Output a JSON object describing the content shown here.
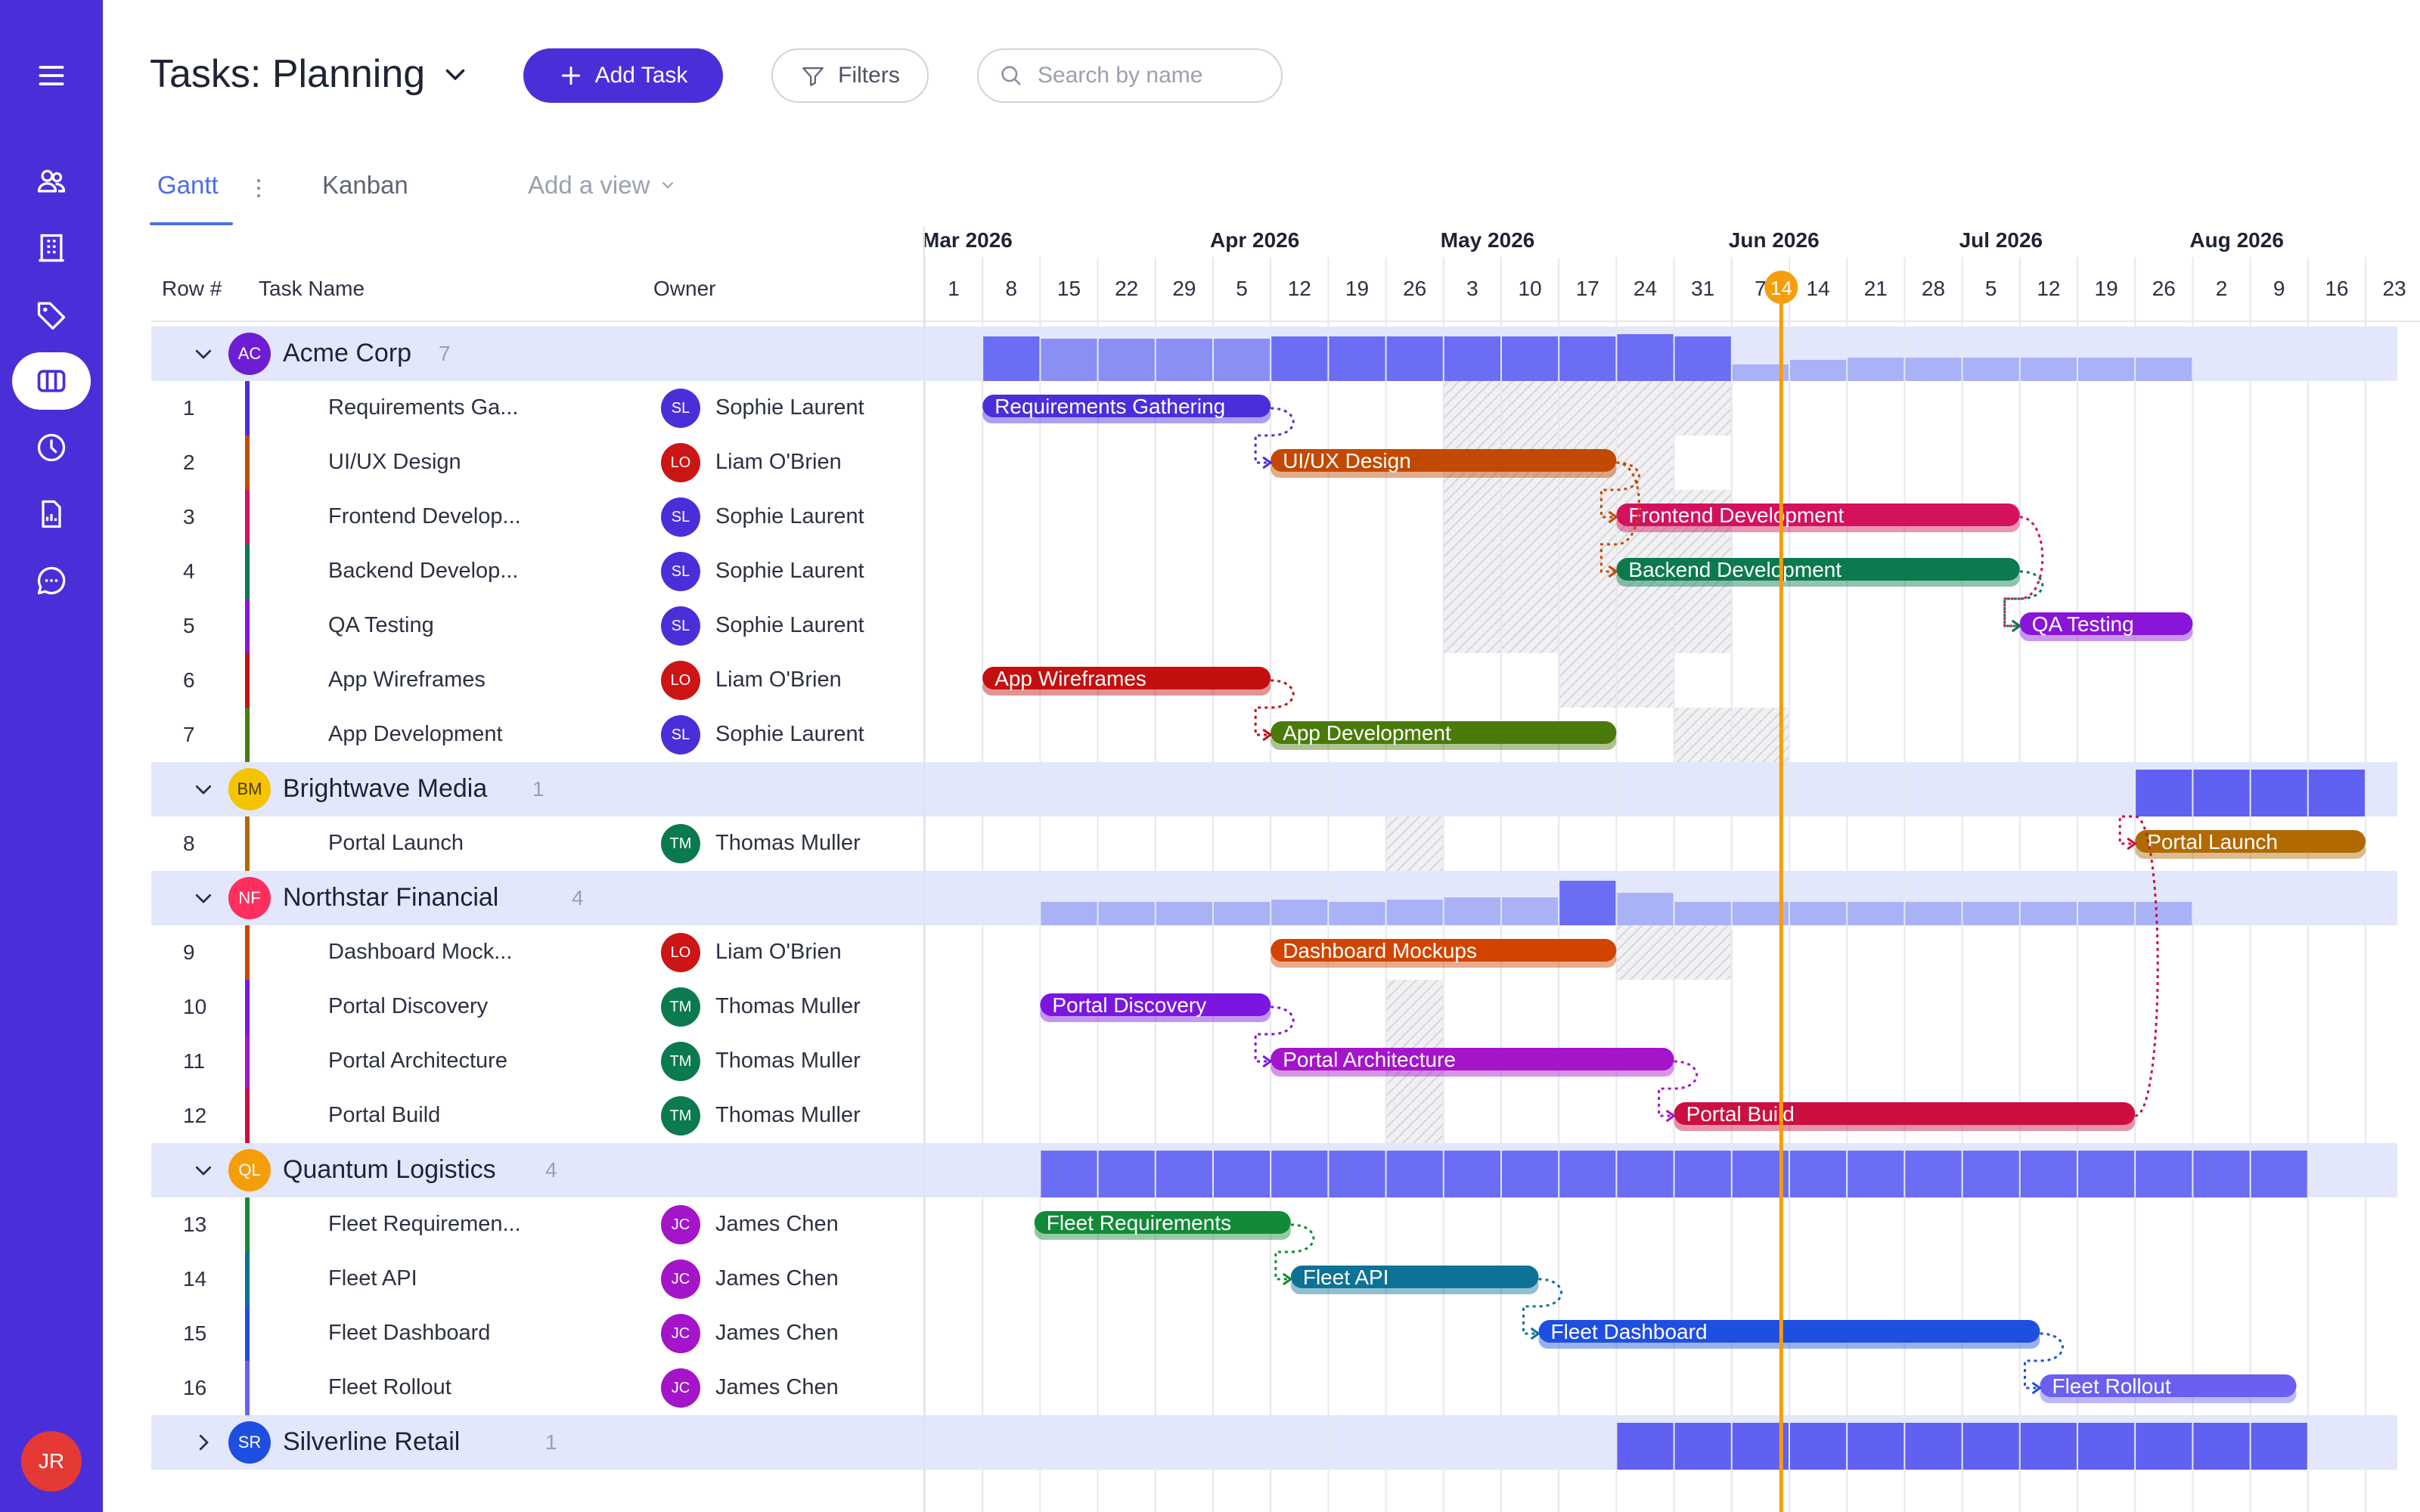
{
  "header": {
    "title": "Tasks: Planning",
    "add_task": "Add Task",
    "filters": "Filters",
    "search_placeholder": "Search by name"
  },
  "tabs": [
    {
      "label": "Gantt",
      "active": true
    },
    {
      "label": "Kanban",
      "active": false
    },
    {
      "label": "Add a view",
      "active": false
    }
  ],
  "table_headers": {
    "row": "Row #",
    "task": "Task Name",
    "owner": "Owner"
  },
  "user_initials": "JR",
  "sidebar_icons": [
    "menu-icon",
    "users-icon",
    "building-icon",
    "tag-icon",
    "columns-icon",
    "clock-icon",
    "report-icon",
    "chat-icon"
  ],
  "timeline": {
    "months": [
      {
        "label": "Mar 2026",
        "week": 0
      },
      {
        "label": "Apr 2026",
        "week": 5
      },
      {
        "label": "May 2026",
        "week": 9
      },
      {
        "label": "Jun 2026",
        "week": 14
      },
      {
        "label": "Jul 2026",
        "week": 18
      },
      {
        "label": "Aug 2026",
        "week": 22
      }
    ],
    "weeks": [
      "1",
      "8",
      "15",
      "22",
      "29",
      "5",
      "12",
      "19",
      "26",
      "3",
      "10",
      "17",
      "24",
      "31",
      "7",
      "14",
      "21",
      "28",
      "5",
      "12",
      "19",
      "26",
      "2",
      "9",
      "16",
      "23"
    ],
    "today": "14",
    "today_week": 14.86
  },
  "colors": {
    "accent": "#4a2fd9",
    "today": "#f59e0b",
    "group_band": "#e3e7fb",
    "summary": "#7c83f6"
  },
  "groups": [
    {
      "name": "Acme Corp",
      "initials": "AC",
      "color": "#6d1ed4",
      "count": "7",
      "expanded": true,
      "summary": [
        0.95,
        0.9,
        0.9,
        0.9,
        0.9,
        0.95,
        0.95,
        0.95,
        0.95,
        0.95,
        0.95,
        1.0,
        0.95,
        0.35,
        0.45,
        0.5,
        0.5,
        0.5,
        0.5,
        0.5,
        0.5
      ],
      "summary_start": 1,
      "tasks": [
        {
          "row": "1",
          "name": "Requirements Ga...",
          "bar_label": "Requirements Gathering",
          "owner": "Sophie Laurent",
          "owner_initials": "SL",
          "owner_color": "#4a2fd9",
          "color": "#4a2fd9",
          "start": 1,
          "end": 6,
          "shade": [
            9,
            13
          ]
        },
        {
          "row": "2",
          "name": "UI/UX Design",
          "bar_label": "UI/UX Design",
          "owner": "Liam O'Brien",
          "owner_initials": "LO",
          "owner_color": "#cc1515",
          "color": "#c24a00",
          "start": 6,
          "end": 12,
          "shade": [
            9,
            12
          ]
        },
        {
          "row": "3",
          "name": "Frontend Develop...",
          "bar_label": "Frontend Development",
          "owner": "Sophie Laurent",
          "owner_initials": "SL",
          "owner_color": "#4a2fd9",
          "color": "#d3115d",
          "start": 12,
          "end": 19,
          "shade": [
            9,
            13
          ]
        },
        {
          "row": "4",
          "name": "Backend Develop...",
          "bar_label": "Backend Development",
          "owner": "Sophie Laurent",
          "owner_initials": "SL",
          "owner_color": "#4a2fd9",
          "color": "#0c7a4f",
          "start": 12,
          "end": 19,
          "shade": [
            9,
            13
          ]
        },
        {
          "row": "5",
          "name": "QA Testing",
          "bar_label": "QA Testing",
          "owner": "Sophie Laurent",
          "owner_initials": "SL",
          "owner_color": "#4a2fd9",
          "color": "#8a14d8",
          "start": 19,
          "end": 22,
          "shade": [
            9,
            13
          ]
        },
        {
          "row": "6",
          "name": "App Wireframes",
          "bar_label": "App Wireframes",
          "owner": "Liam O'Brien",
          "owner_initials": "LO",
          "owner_color": "#cc1515",
          "color": "#c40f0f",
          "start": 1,
          "end": 6,
          "shade": [
            11,
            12
          ]
        },
        {
          "row": "7",
          "name": "App Development",
          "bar_label": "App Development",
          "owner": "Sophie Laurent",
          "owner_initials": "SL",
          "owner_color": "#4a2fd9",
          "color": "#4a7a0a",
          "start": 6,
          "end": 12,
          "shade": [
            13,
            14
          ]
        }
      ]
    },
    {
      "name": "Brightwave Media",
      "initials": "BM",
      "color": "#f5c400",
      "count": "1",
      "expanded": true,
      "summary": [
        1,
        1,
        1,
        1
      ],
      "summary_start": 21,
      "tasks": [
        {
          "row": "8",
          "name": "Portal Launch",
          "bar_label": "Portal Launch",
          "owner": "Thomas Muller",
          "owner_initials": "TM",
          "owner_color": "#0c7a4f",
          "color": "#b06a00",
          "start": 21,
          "end": 25,
          "shade": [
            8,
            8
          ]
        }
      ]
    },
    {
      "name": "Northstar Financial",
      "initials": "NF",
      "color": "#ff2f5f",
      "count": "4",
      "expanded": true,
      "summary": [
        0.5,
        0.5,
        0.5,
        0.5,
        0.55,
        0.5,
        0.55,
        0.6,
        0.6,
        0.95,
        0.7,
        0.5,
        0.5,
        0.5,
        0.5,
        0.5,
        0.5,
        0.5,
        0.5,
        0.5
      ],
      "summary_start": 2,
      "tasks": [
        {
          "row": "9",
          "name": "Dashboard Mock...",
          "bar_label": "Dashboard Mockups",
          "owner": "Liam O'Brien",
          "owner_initials": "LO",
          "owner_color": "#cc1515",
          "color": "#d04400",
          "start": 6,
          "end": 12,
          "shade": [
            12,
            13
          ]
        },
        {
          "row": "10",
          "name": "Portal Discovery",
          "bar_label": "Portal Discovery",
          "owner": "Thomas Muller",
          "owner_initials": "TM",
          "owner_color": "#0c7a4f",
          "color": "#7a16e0",
          "start": 2,
          "end": 6,
          "shade": [
            8,
            8
          ]
        },
        {
          "row": "11",
          "name": "Portal Architecture",
          "bar_label": "Portal Architecture",
          "owner": "Thomas Muller",
          "owner_initials": "TM",
          "owner_color": "#0c7a4f",
          "color": "#a414c8",
          "start": 6,
          "end": 13,
          "shade": [
            8,
            8
          ]
        },
        {
          "row": "12",
          "name": "Portal Build",
          "bar_label": "Portal Build",
          "owner": "Thomas Muller",
          "owner_initials": "TM",
          "owner_color": "#0c7a4f",
          "color": "#cc0f3f",
          "start": 13,
          "end": 21,
          "shade": [
            8,
            8
          ]
        }
      ]
    },
    {
      "name": "Quantum Logistics",
      "initials": "QL",
      "color": "#f59e0b",
      "count": "4",
      "expanded": true,
      "summary": [
        1,
        1,
        1,
        1,
        1,
        1,
        1,
        1,
        1,
        1,
        1,
        1,
        1,
        1,
        1,
        1,
        1,
        1,
        1,
        1,
        1,
        1
      ],
      "summary_start": 2,
      "tasks": [
        {
          "row": "13",
          "name": "Fleet Requiremen...",
          "bar_label": "Fleet Requirements",
          "owner": "James Chen",
          "owner_initials": "JC",
          "owner_color": "#a414c8",
          "color": "#138a38",
          "start": 1.9,
          "end": 6.35,
          "shade": null
        },
        {
          "row": "14",
          "name": "Fleet API",
          "bar_label": "Fleet API",
          "owner": "James Chen",
          "owner_initials": "JC",
          "owner_color": "#a414c8",
          "color": "#0c7296",
          "start": 6.35,
          "end": 10.65,
          "shade": null
        },
        {
          "row": "15",
          "name": "Fleet Dashboard",
          "bar_label": "Fleet Dashboard",
          "owner": "James Chen",
          "owner_initials": "JC",
          "owner_color": "#a414c8",
          "color": "#1f4fe0",
          "start": 10.65,
          "end": 19.35,
          "shade": null
        },
        {
          "row": "16",
          "name": "Fleet Rollout",
          "bar_label": "Fleet Rollout",
          "owner": "James Chen",
          "owner_initials": "JC",
          "owner_color": "#a414c8",
          "color": "#6a5ff0",
          "start": 19.35,
          "end": 23.8,
          "shade": null
        }
      ]
    },
    {
      "name": "Silverline Retail",
      "initials": "SR",
      "color": "#1f4fe0",
      "count": "1",
      "expanded": false,
      "summary": [
        1,
        1,
        1,
        1,
        1,
        1,
        1,
        1,
        1,
        1,
        1,
        1
      ],
      "summary_start": 12,
      "tasks": []
    }
  ],
  "dependencies": [
    [
      "1",
      "2"
    ],
    [
      "2",
      "3"
    ],
    [
      "2",
      "4"
    ],
    [
      "3",
      "5"
    ],
    [
      "4",
      "5"
    ],
    [
      "6",
      "7"
    ],
    [
      "10",
      "11"
    ],
    [
      "11",
      "12"
    ],
    [
      "12",
      "8"
    ],
    [
      "13",
      "14"
    ],
    [
      "14",
      "15"
    ],
    [
      "15",
      "16"
    ]
  ]
}
